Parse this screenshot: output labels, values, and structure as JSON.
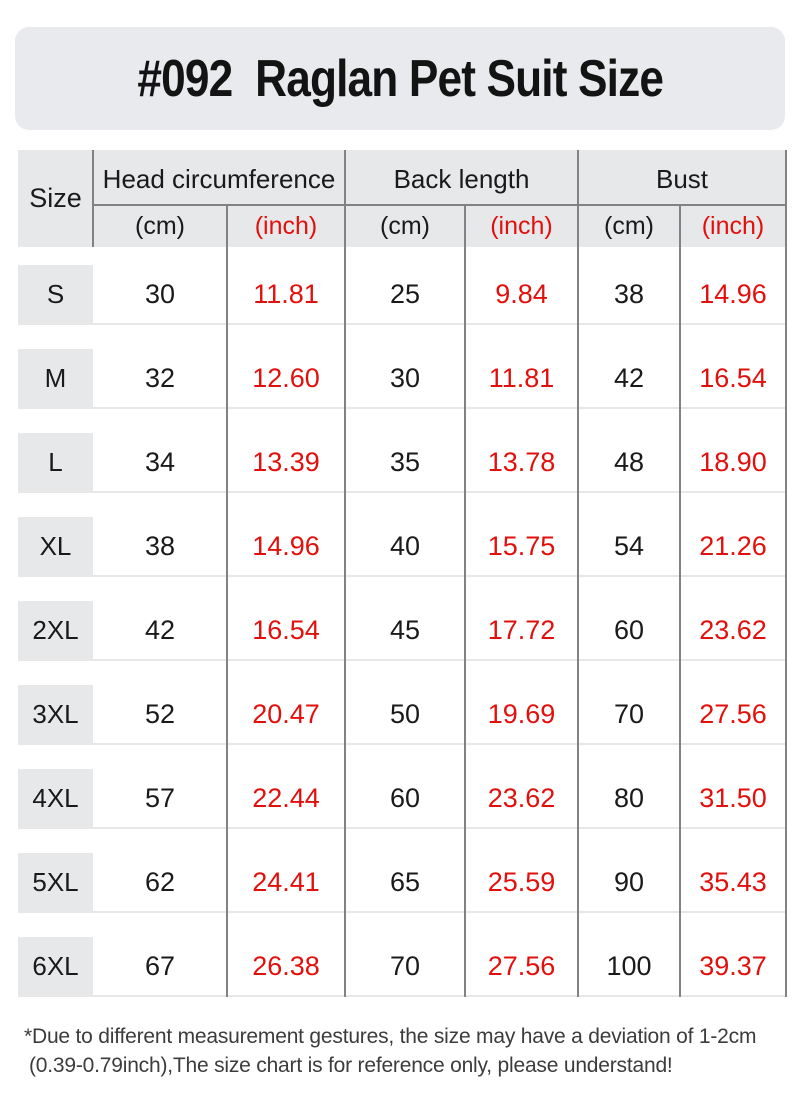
{
  "title": "#092  Raglan Pet Suit Size",
  "chart_data": {
    "type": "table",
    "title": "#092 Raglan Pet Suit Size",
    "corner_label": "Size",
    "column_groups": [
      {
        "label": "Head circumference"
      },
      {
        "label": "Back length"
      },
      {
        "label": "Bust"
      }
    ],
    "unit_cm": "(cm)",
    "unit_inch": "(inch)",
    "columns": [
      "Size",
      "Head circumference (cm)",
      "Head circumference (inch)",
      "Back length (cm)",
      "Back length (inch)",
      "Bust (cm)",
      "Bust (inch)"
    ],
    "rows": [
      {
        "size": "S",
        "values": [
          "30",
          "11.81",
          "25",
          "9.84",
          "38",
          "14.96"
        ]
      },
      {
        "size": "M",
        "values": [
          "32",
          "12.60",
          "30",
          "11.81",
          "42",
          "16.54"
        ]
      },
      {
        "size": "L",
        "values": [
          "34",
          "13.39",
          "35",
          "13.78",
          "48",
          "18.90"
        ]
      },
      {
        "size": "XL",
        "values": [
          "38",
          "14.96",
          "40",
          "15.75",
          "54",
          "21.26"
        ]
      },
      {
        "size": "2XL",
        "values": [
          "42",
          "16.54",
          "45",
          "17.72",
          "60",
          "23.62"
        ]
      },
      {
        "size": "3XL",
        "values": [
          "52",
          "20.47",
          "50",
          "19.69",
          "70",
          "27.56"
        ]
      },
      {
        "size": "4XL",
        "values": [
          "57",
          "22.44",
          "60",
          "23.62",
          "80",
          "31.50"
        ]
      },
      {
        "size": "5XL",
        "values": [
          "62",
          "24.41",
          "65",
          "25.59",
          "90",
          "35.43"
        ]
      },
      {
        "size": "6XL",
        "values": [
          "67",
          "26.38",
          "70",
          "27.56",
          "100",
          "39.37"
        ]
      }
    ]
  },
  "footnote": {
    "line1": "*Due to different measurement gestures, the size may have a deviation of 1-2cm",
    "line2": "(0.39-0.79inch),The size chart is for reference only, please understand!"
  },
  "colors": {
    "accent_red": "#e2100d",
    "header_bg": "#e7e8ea",
    "banner_bg": "#e9eaed",
    "grid_dark": "#828282",
    "grid_light": "#e7e7e7"
  }
}
